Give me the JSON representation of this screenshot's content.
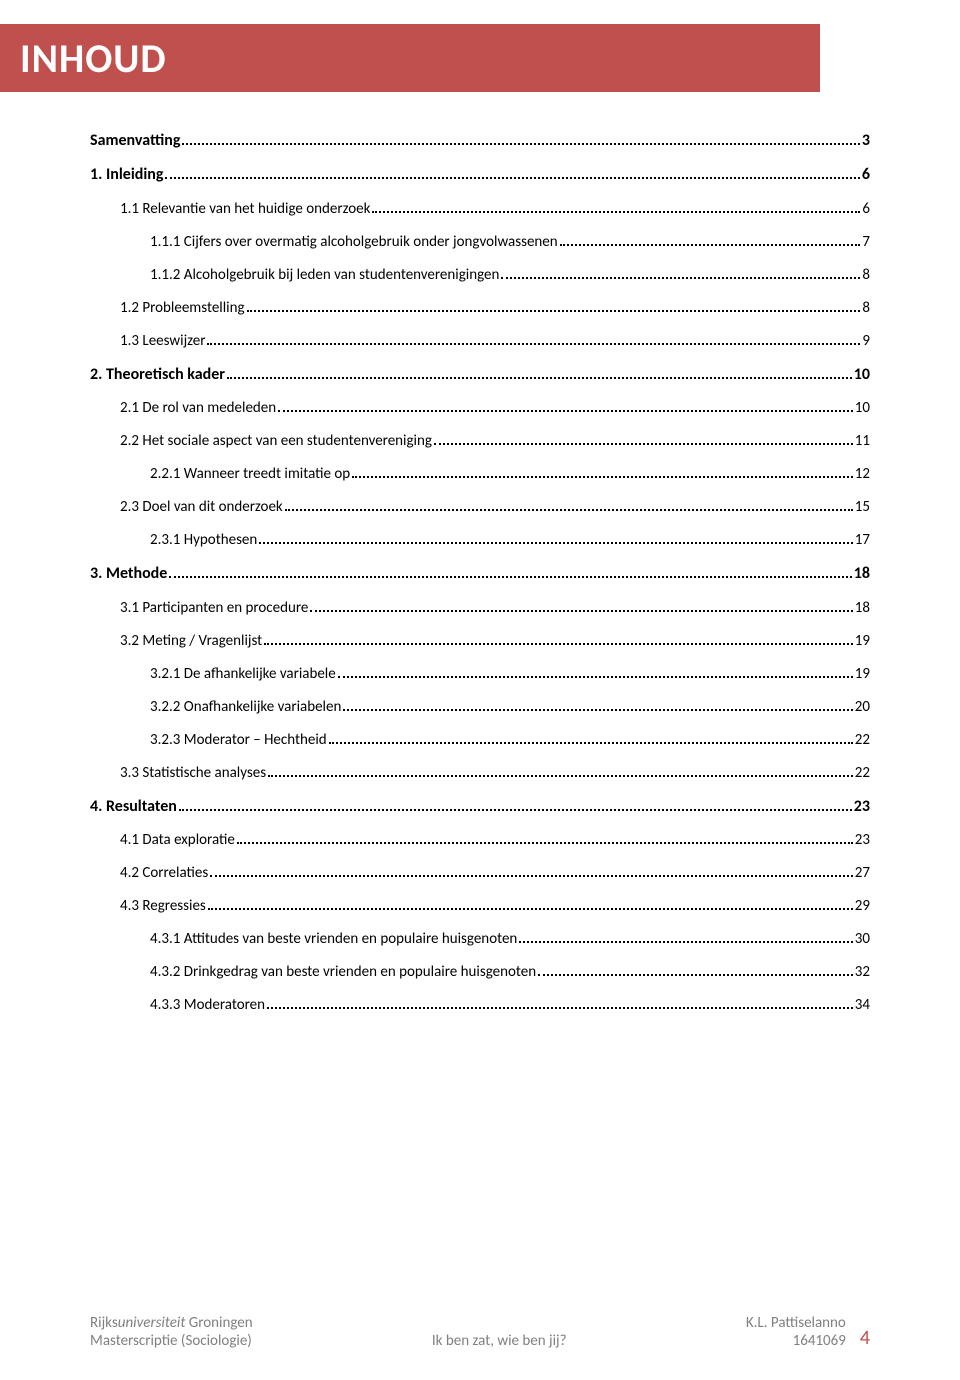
{
  "colors": {
    "accent": "#c0504d",
    "text": "#000000",
    "footer_text": "#808080",
    "background": "#ffffff"
  },
  "title": "INHOUD",
  "toc": [
    {
      "label": "Samenvatting",
      "page": "3",
      "level": 0
    },
    {
      "label": "1. Inleiding",
      "page": "6",
      "level": 0
    },
    {
      "label": "1.1 Relevantie van het huidige onderzoek",
      "page": "6",
      "level": 1
    },
    {
      "label": "1.1.1 Cijfers over overmatig alcoholgebruik onder jongvolwassenen",
      "page": "7",
      "level": 2
    },
    {
      "label": "1.1.2 Alcoholgebruik bij leden van studentenverenigingen",
      "page": "8",
      "level": 2
    },
    {
      "label": "1.2 Probleemstelling",
      "page": "8",
      "level": 1
    },
    {
      "label": "1.3 Leeswijzer",
      "page": "9",
      "level": 1
    },
    {
      "label": "2. Theoretisch kader",
      "page": "10",
      "level": 0
    },
    {
      "label": "2.1 De rol van medeleden",
      "page": "10",
      "level": 1
    },
    {
      "label": "2.2 Het sociale aspect van een studentenvereniging",
      "page": "11",
      "level": 1
    },
    {
      "label": "2.2.1 Wanneer treedt imitatie op",
      "page": "12",
      "level": 2
    },
    {
      "label": "2.3 Doel van dit onderzoek",
      "page": "15",
      "level": 1
    },
    {
      "label": "2.3.1 Hypothesen",
      "page": "17",
      "level": 2
    },
    {
      "label": "3. Methode",
      "page": "18",
      "level": 0
    },
    {
      "label": "3.1 Participanten en procedure",
      "page": "18",
      "level": 1
    },
    {
      "label": "3.2 Meting / Vragenlijst",
      "page": "19",
      "level": 1
    },
    {
      "label": "3.2.1 De afhankelijke variabele",
      "page": "19",
      "level": 2
    },
    {
      "label": "3.2.2 Onafhankelijke variabelen",
      "page": "20",
      "level": 2
    },
    {
      "label": "3.2.3 Moderator – Hechtheid",
      "page": "22",
      "level": 2
    },
    {
      "label": "3.3 Statistische analyses",
      "page": "22",
      "level": 1
    },
    {
      "label": "4. Resultaten",
      "page": "23",
      "level": 0
    },
    {
      "label": "4.1 Data exploratie",
      "page": "23",
      "level": 1
    },
    {
      "label": "4.2 Correlaties",
      "page": "27",
      "level": 1
    },
    {
      "label": "4.3 Regressies",
      "page": "29",
      "level": 1
    },
    {
      "label": "4.3.1 Attitudes van beste vrienden en populaire huisgenoten",
      "page": "30",
      "level": 2
    },
    {
      "label": "4.3.2 Drinkgedrag van beste vrienden en populaire huisgenoten",
      "page": "32",
      "level": 2
    },
    {
      "label": "4.3.3 Moderatoren",
      "page": "34",
      "level": 2
    }
  ],
  "footer": {
    "left_line1_prefix": "Rijks",
    "left_line1_italic": "universiteit",
    "left_line1_suffix": " Groningen",
    "left_line2": "Masterscriptie (Sociologie)",
    "mid": "Ik ben zat, wie ben jij?",
    "right_line1": "K.L. Pattiselanno",
    "right_line2": "1641069",
    "page_number": "4"
  }
}
